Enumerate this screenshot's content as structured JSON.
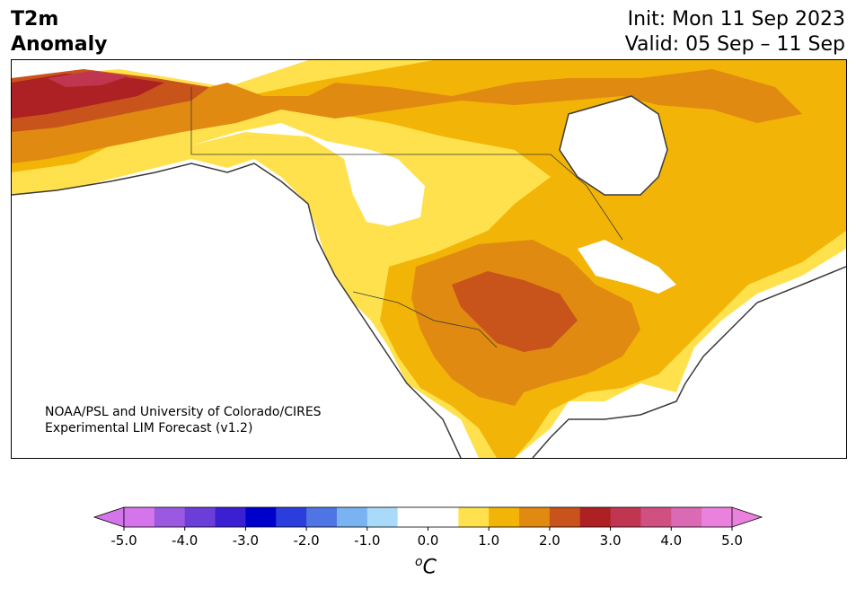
{
  "header": {
    "title_line1": "T2m",
    "title_line2": "Anomaly",
    "init": "Init: Mon 11 Sep 2023",
    "valid": "Valid: 05 Sep – 11 Sep"
  },
  "map": {
    "region": "North America",
    "credit_line1": "NOAA/PSL and University of Colorado/CIRES",
    "credit_line2": "Experimental LIM Forecast (v1.2)"
  },
  "colorbar": {
    "units_prefix": "o",
    "units_suffix": "C",
    "tick_labels": [
      "-5.0",
      "-4.0",
      "-3.0",
      "-2.0",
      "-1.0",
      "0.0",
      "1.0",
      "2.0",
      "3.0",
      "4.0",
      "5.0"
    ],
    "range": [
      -5.0,
      5.0
    ],
    "bin_width": 0.5,
    "colors": [
      "#d575eb",
      "#9a59e0",
      "#6b3dd9",
      "#3a20d2",
      "#0000cc",
      "#2b3ddb",
      "#4f74e3",
      "#7ab3f1",
      "#aadaf9",
      "#ffffff",
      "#ffffff",
      "#ffe14d",
      "#f2b406",
      "#e08a11",
      "#c8531b",
      "#ad2023",
      "#c03550",
      "#cf5081",
      "#db6ab5",
      "#ea82dd"
    ],
    "extend_low_color": "#d575eb",
    "extend_high_color": "#ea82dd"
  },
  "colors": {
    "anom_0_5": "#ffe14d",
    "anom_1_0": "#f2b406",
    "anom_1_5": "#e08a11",
    "anom_2_0": "#c8531b",
    "anom_2_5": "#ad2023",
    "anom_3_0": "#c03550",
    "coastline": "#3a3a3a"
  }
}
